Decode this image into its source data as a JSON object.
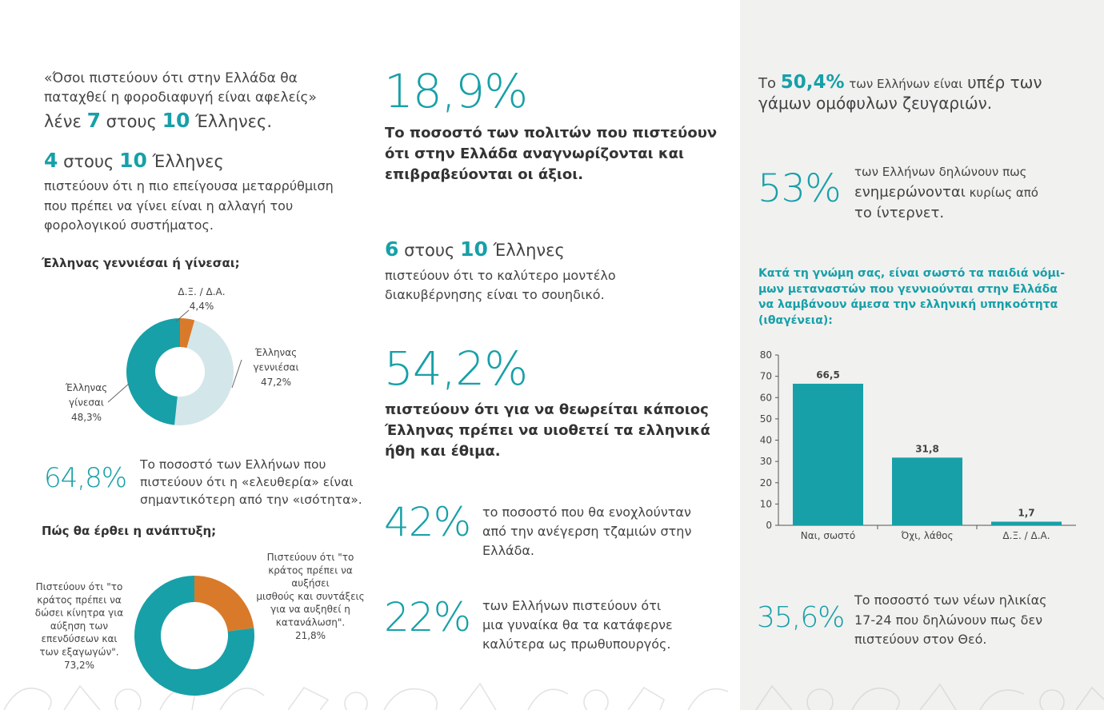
{
  "col1": {
    "quote1": "«Όσοι πιστεύουν ότι στην Ελλάδα θα",
    "quote2": "παταχθεί η φοροδιαφυγή είναι αφελείς»",
    "say_pre": "λένε",
    "say_n": "7",
    "say_mid": "στους",
    "say_d": "10",
    "say_post": "Έλληνες.",
    "four_n": "4",
    "four_mid": "στους",
    "four_d": "10",
    "four_post": "Έλληνες",
    "four_text1": "πιστεύουν ότι η πιο επείγουσα μεταρρύθμιση",
    "four_text2": "που πρέπει να γίνει είναι η αλλαγή του",
    "four_text3": "φορολογικού συστήματος.",
    "stat648": "64,8%",
    "stat648_t1": "Το ποσοστό των Ελλήνων που",
    "stat648_t2": "πιστεύουν ότι η «ελευθερία» είναι",
    "stat648_t3": "σημαντικότερη από την «ισότητα»."
  },
  "col2": {
    "s189": "18,9%",
    "s189_t1": "Το ποσοστό των πολιτών που πιστεύουν",
    "s189_t2": "ότι στην Ελλάδα αναγνωρίζονται και",
    "s189_t3": "επιβραβεύονται οι άξιοι.",
    "six_n": "6",
    "six_mid": "στους",
    "six_d": "10",
    "six_post": "Έλληνες",
    "six_t1": "πιστεύουν ότι το καλύτερο μοντέλο",
    "six_t2": "διακυβέρνησης είναι το σουηδικό.",
    "s542": "54,2%",
    "s542_t1": "πιστεύουν ότι για να θεωρείται κάποιος",
    "s542_t2": "Έλληνας πρέπει να υιοθετεί τα ελληνικά",
    "s542_t3": "ήθη και έθιμα.",
    "s42": "42%",
    "s42_t1": "το ποσοστό που θα ενοχλούνταν",
    "s42_t2": "από την ανέγερση τζαμιών στην",
    "s42_t3": "Ελλάδα.",
    "s22": "22%",
    "s22_t1": "των Ελλήνων πιστεύουν ότι",
    "s22_t2": "μια γυναίκα θα τα κατάφερνε",
    "s22_t3": "καλύτερα ως πρωθυπουργός."
  },
  "col3": {
    "s504_pre": "Το",
    "s504": "50,4%",
    "s504_mid": "των Ελλήνων είναι",
    "s504_big": "υπέρ των",
    "s504_l2": "γάμων ομόφυλων ζευγαριών.",
    "s53": "53%",
    "s53_t1": "των Ελλήνων δηλώνουν πως",
    "s53_t2a": "ενημερώνονται",
    "s53_t2b": "κυρίως από",
    "s53_t3": "το ίντερνετ.",
    "q1": "Κατά τη γνώμη σας, είναι σωστό τα παιδιά νόμι-",
    "q2": "μων μεταναστών που γεννιούνται στην Ελλάδα",
    "q3": "να λαμβάνουν άμεσα την ελληνική υπηκοότητα",
    "q4": "(ιθαγένεια):",
    "s356": "35,6%",
    "s356_t1": "Το ποσοστό των νέων ηλικίας",
    "s356_t2": "17-24 που δηλώνουν πως δεν",
    "s356_t3": "πιστεύουν στον Θεό."
  },
  "colors": {
    "teal": "#17a0a8",
    "light_blue": "#d3e6ea",
    "orange": "#d97a2a",
    "sidebar_bg": "#f1f1f0"
  },
  "chart_data": [
    {
      "type": "pie",
      "title": "Έλληνας γεννιέσαι ή γίνεσαι;",
      "slices": [
        {
          "label": "Δ.Ξ. / Δ.Α.",
          "value": 4.4,
          "value_text": "4,4%",
          "color": "#d97a2a"
        },
        {
          "label": "Έλληνας γεννιέσαι",
          "value": 47.2,
          "value_text": "47,2%",
          "color": "#d3e6ea"
        },
        {
          "label": "Έλληνας γίνεσαι",
          "value": 48.3,
          "value_text": "48,3%",
          "color": "#17a0a8"
        }
      ]
    },
    {
      "type": "pie",
      "title": "Πώς θα έρθει η ανάπτυξη;",
      "slices": [
        {
          "label": "Πιστεύουν ότι \"το κράτος πρέπει να αυξήσει μισθούς και συντάξεις για να αυξηθεί η κατανάλωση\".",
          "value": 21.8,
          "value_text": "21,8%",
          "color": "#d97a2a"
        },
        {
          "label": "Πιστεύουν ότι \"το κράτος πρέπει να δώσει κίνητρα για αύξηση των επενδύσεων και των εξαγωγών\".",
          "value": 73.2,
          "value_text": "73,2%",
          "color": "#17a0a8"
        }
      ]
    },
    {
      "type": "bar",
      "categories": [
        "Ναι, σωστό",
        "Όχι, λάθος",
        "Δ.Ξ. / Δ.Α."
      ],
      "values": [
        66.5,
        31.8,
        1.7
      ],
      "value_labels": [
        "66,5",
        "31,8",
        "1,7"
      ],
      "ylim": [
        0,
        80
      ],
      "yticks": [
        0,
        10,
        20,
        30,
        40,
        50,
        60,
        70,
        80
      ],
      "color": "#17a0a8",
      "grid": false
    }
  ]
}
